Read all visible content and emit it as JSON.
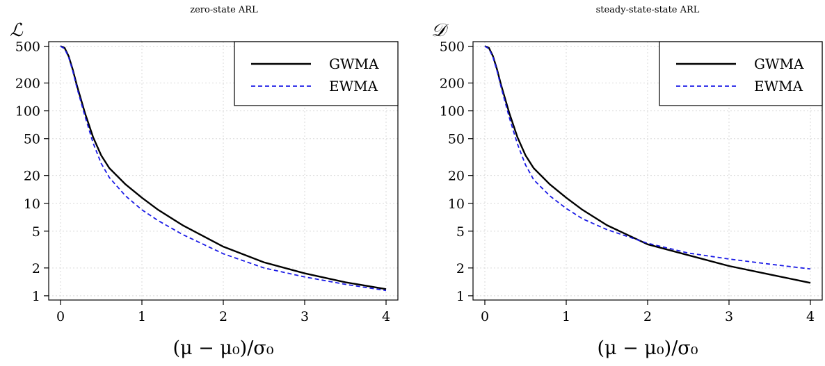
{
  "chart_data": [
    {
      "type": "line",
      "title": "zero-state ARL",
      "ylabel": "ℒ",
      "xlabel": "(μ − μ₀)/σ₀",
      "xlim": [
        0,
        4
      ],
      "ylim": [
        0.9,
        560
      ],
      "yscale": "log",
      "xticks": [
        "0",
        "1",
        "2",
        "3",
        "4"
      ],
      "yticks": [
        "1",
        "2",
        "5",
        "10",
        "20",
        "50",
        "100",
        "200",
        "500"
      ],
      "grid": true,
      "legend": "top-right",
      "x": [
        0,
        0.05,
        0.1,
        0.15,
        0.2,
        0.3,
        0.4,
        0.5,
        0.6,
        0.8,
        1.0,
        1.2,
        1.5,
        2.0,
        2.5,
        3.0,
        3.5,
        4.0
      ],
      "series": [
        {
          "name": "GWMA",
          "color": "#000000",
          "dash": "solid",
          "values": [
            500,
            480,
            390,
            280,
            190,
            95,
            52,
            33,
            24,
            16,
            11.5,
            8.5,
            5.8,
            3.4,
            2.3,
            1.75,
            1.4,
            1.18
          ]
        },
        {
          "name": "EWMA",
          "color": "#1a1ae6",
          "dash": "dashed",
          "values": [
            500,
            470,
            380,
            270,
            180,
            88,
            45,
            27,
            19,
            12,
            8.5,
            6.5,
            4.6,
            2.85,
            2.0,
            1.6,
            1.33,
            1.14
          ]
        }
      ]
    },
    {
      "type": "line",
      "title": "steady-state-state ARL",
      "ylabel": "𝒟",
      "xlabel": "(μ − μ₀)/σ₀",
      "xlim": [
        0,
        4
      ],
      "ylim": [
        0.9,
        560
      ],
      "yscale": "log",
      "xticks": [
        "0",
        "1",
        "2",
        "3",
        "4"
      ],
      "yticks": [
        "1",
        "2",
        "5",
        "10",
        "20",
        "50",
        "100",
        "200",
        "500"
      ],
      "grid": true,
      "legend": "top-right",
      "x": [
        0,
        0.05,
        0.1,
        0.15,
        0.2,
        0.3,
        0.4,
        0.5,
        0.6,
        0.8,
        1.0,
        1.2,
        1.5,
        2.0,
        2.5,
        3.0,
        3.5,
        4.0
      ],
      "series": [
        {
          "name": "GWMA",
          "color": "#000000",
          "dash": "solid",
          "values": [
            500,
            480,
            390,
            280,
            190,
            95,
            52,
            33,
            24,
            16,
            11.5,
            8.5,
            5.8,
            3.6,
            2.75,
            2.1,
            1.7,
            1.38
          ]
        },
        {
          "name": "EWMA",
          "color": "#1a1ae6",
          "dash": "dashed",
          "values": [
            500,
            470,
            380,
            270,
            180,
            85,
            44,
            26,
            18,
            12,
            8.8,
            6.8,
            5.2,
            3.7,
            2.9,
            2.5,
            2.2,
            1.95
          ]
        }
      ]
    }
  ]
}
